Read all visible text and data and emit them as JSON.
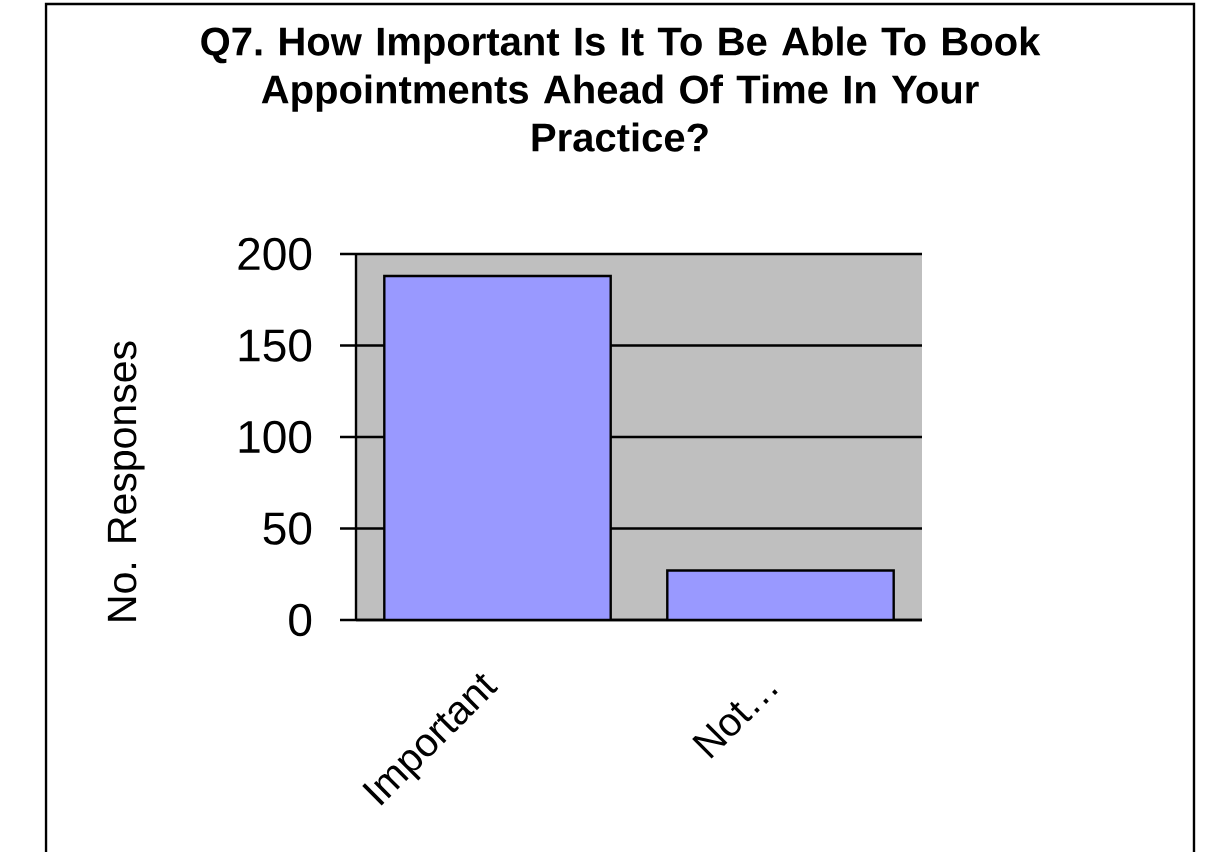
{
  "chart_data": {
    "type": "bar",
    "title": "Q7. How Important Is It To Be Able To Book Appointments Ahead Of Time In Your Practice?",
    "ylabel": "No. Responses",
    "categories": [
      "Important",
      "Not…"
    ],
    "values": [
      188,
      27
    ],
    "color": "#9999ff",
    "ylim": [
      0,
      200
    ],
    "yticks": [
      0,
      50,
      100,
      150,
      200
    ],
    "grid": "y"
  }
}
